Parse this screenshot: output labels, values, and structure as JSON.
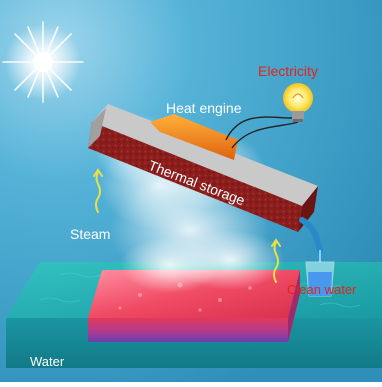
{
  "labels": {
    "electricity": "Electricity",
    "heat_engine": "Heat engine",
    "thermal_storage": "Thermal storage",
    "steam": "Steam",
    "clean_water": "Clean water",
    "water": "Water"
  },
  "colors": {
    "sky": "#3f9fc7",
    "electricity_text": "#e2241b",
    "clean_water_text": "#e2241b",
    "white_text": "#ffffff",
    "thermal_block": "#8e1f1f",
    "heat_engine": "#f08a1c",
    "evaporator_top": "#f2506a",
    "water_pool": "#1fa6a6",
    "arrow": "#e8e04a"
  },
  "icons": [
    "sun-icon",
    "light-bulb-icon",
    "water-glass-icon",
    "steam-arrow-icon"
  ]
}
